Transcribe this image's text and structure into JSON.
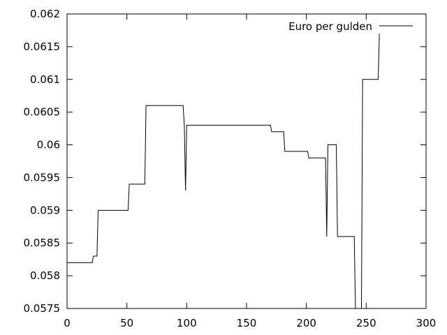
{
  "chart_data": {
    "type": "line",
    "title": "",
    "xlabel": "",
    "ylabel": "",
    "xlim": [
      0,
      300
    ],
    "ylim": [
      0.0575,
      0.062
    ],
    "xticks": [
      0,
      50,
      100,
      150,
      200,
      250,
      300
    ],
    "yticks": [
      0.0575,
      0.058,
      0.0585,
      0.059,
      0.0595,
      0.06,
      0.0605,
      0.061,
      0.0615,
      0.062
    ],
    "xtick_labels": [
      "0",
      "50",
      "100",
      "150",
      "200",
      "250",
      "300"
    ],
    "ytick_labels": [
      "0.0575",
      "0.058",
      "0.0585",
      "0.059",
      "0.0595",
      "0.06",
      "0.0605",
      "0.061",
      "0.0615",
      "0.062"
    ],
    "grid": false,
    "legend_position": "top-right",
    "series": [
      {
        "name": "Euro per gulden",
        "color": "#000000",
        "x": [
          0,
          21,
          22,
          25,
          26,
          51,
          52,
          65,
          66,
          97,
          98,
          99,
          100,
          170,
          171,
          181,
          182,
          201,
          202,
          216,
          217,
          218,
          219,
          225,
          226,
          240,
          241,
          243,
          244,
          246,
          247,
          260,
          261
        ],
        "y": [
          0.0582,
          0.0582,
          0.0583,
          0.0583,
          0.059,
          0.059,
          0.0594,
          0.0594,
          0.0606,
          0.0606,
          0.0603,
          0.0593,
          0.0603,
          0.0603,
          0.0602,
          0.0602,
          0.0599,
          0.0599,
          0.0598,
          0.0598,
          0.0586,
          0.06,
          0.06,
          0.06,
          0.0586,
          0.0586,
          0.0575,
          0.0575,
          0.0575,
          0.0575,
          0.061,
          0.061,
          0.0617
        ]
      }
    ]
  }
}
